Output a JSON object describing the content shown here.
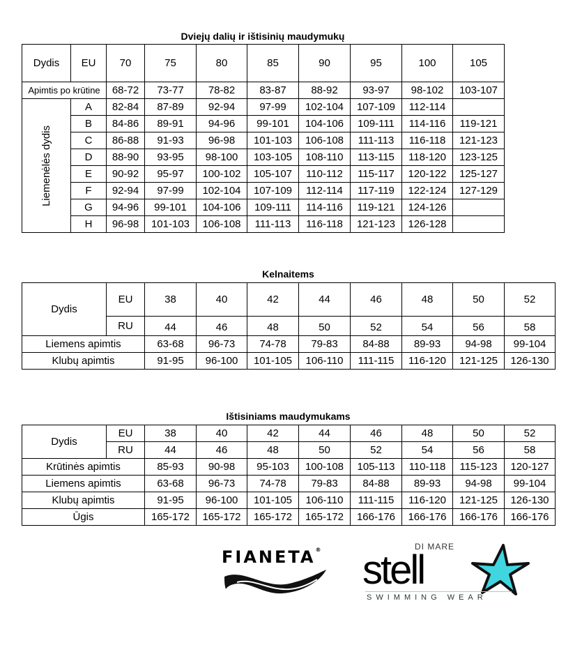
{
  "table1": {
    "title": "Dviejų dalių ir ištisinių maudymukų",
    "header": [
      "Dydis",
      "EU",
      "70",
      "75",
      "80",
      "85",
      "90",
      "95",
      "100",
      "105"
    ],
    "underbust_label": "Apimtis po krūtine",
    "underbust": [
      "68-72",
      "73-77",
      "78-82",
      "83-87",
      "88-92",
      "93-97",
      "98-102",
      "103-107"
    ],
    "cup_label": "Liemenėlės dydis",
    "cups": [
      {
        "cup": "A",
        "values": [
          "82-84",
          "87-89",
          "92-94",
          "97-99",
          "102-104",
          "107-109",
          "112-114",
          ""
        ]
      },
      {
        "cup": "B",
        "values": [
          "84-86",
          "89-91",
          "94-96",
          "99-101",
          "104-106",
          "109-111",
          "114-116",
          "119-121"
        ]
      },
      {
        "cup": "C",
        "values": [
          "86-88",
          "91-93",
          "96-98",
          "101-103",
          "106-108",
          "111-113",
          "116-118",
          "121-123"
        ]
      },
      {
        "cup": "D",
        "values": [
          "88-90",
          "93-95",
          "98-100",
          "103-105",
          "108-110",
          "113-115",
          "118-120",
          "123-125"
        ]
      },
      {
        "cup": "E",
        "values": [
          "90-92",
          "95-97",
          "100-102",
          "105-107",
          "110-112",
          "115-117",
          "120-122",
          "125-127"
        ]
      },
      {
        "cup": "F",
        "values": [
          "92-94",
          "97-99",
          "102-104",
          "107-109",
          "112-114",
          "117-119",
          "122-124",
          "127-129"
        ]
      },
      {
        "cup": "G",
        "values": [
          "94-96",
          "99-101",
          "104-106",
          "109-111",
          "114-116",
          "119-121",
          "124-126",
          ""
        ]
      },
      {
        "cup": "H",
        "values": [
          "96-98",
          "101-103",
          "106-108",
          "111-113",
          "116-118",
          "121-123",
          "126-128",
          ""
        ]
      }
    ]
  },
  "table2": {
    "title": "Kelnaitems",
    "size_label": "Dydis",
    "rows": [
      {
        "label": "EU",
        "values": [
          "38",
          "40",
          "42",
          "44",
          "46",
          "48",
          "50",
          "52"
        ]
      },
      {
        "label": "RU",
        "values": [
          "44",
          "46",
          "48",
          "50",
          "52",
          "54",
          "56",
          "58"
        ]
      },
      {
        "label": "Liemens apimtis",
        "values": [
          "63-68",
          "96-73",
          "74-78",
          "79-83",
          "84-88",
          "89-93",
          "94-98",
          "99-104"
        ]
      },
      {
        "label": "Klubų apimtis",
        "values": [
          "91-95",
          "96-100",
          "101-105",
          "106-110",
          "111-115",
          "116-120",
          "121-125",
          "126-130"
        ]
      }
    ]
  },
  "table3": {
    "title": "Ištisiniams maudymukams",
    "size_label": "Dydis",
    "rows": [
      {
        "label": "EU",
        "values": [
          "38",
          "40",
          "42",
          "44",
          "46",
          "48",
          "50",
          "52"
        ]
      },
      {
        "label": "RU",
        "values": [
          "44",
          "46",
          "48",
          "50",
          "52",
          "54",
          "56",
          "58"
        ]
      },
      {
        "label": "Krūtinės apimtis",
        "values": [
          "85-93",
          "90-98",
          "95-103",
          "100-108",
          "105-113",
          "110-118",
          "115-123",
          "120-127"
        ]
      },
      {
        "label": "Liemens apimtis",
        "values": [
          "63-68",
          "96-73",
          "74-78",
          "79-83",
          "84-88",
          "89-93",
          "94-98",
          "99-104"
        ]
      },
      {
        "label": "Klubų apimtis",
        "values": [
          "91-95",
          "96-100",
          "101-105",
          "106-110",
          "111-115",
          "116-120",
          "121-125",
          "126-130"
        ]
      },
      {
        "label": "Ūgis",
        "values": [
          "165-172",
          "165-172",
          "165-172",
          "165-172",
          "166-176",
          "166-176",
          "166-176",
          "166-176"
        ]
      }
    ]
  },
  "logos": {
    "fianeta": "FIANETA",
    "stella_top": "DI MARE",
    "stella_main": "stell",
    "stella_bottom": "SWIMMING WEAR",
    "star_color": "#3fd6e0"
  }
}
